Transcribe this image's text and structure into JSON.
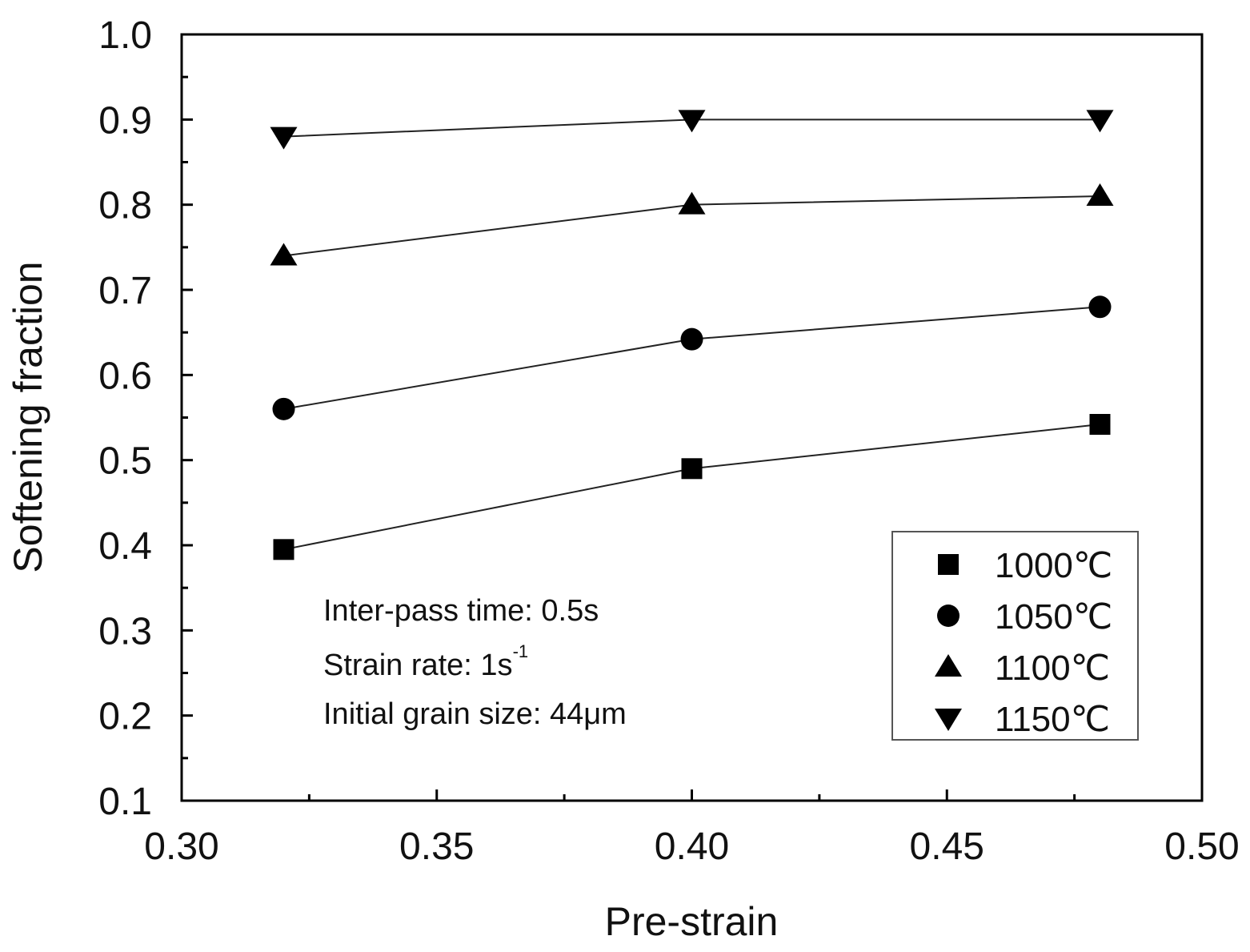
{
  "chart_data": {
    "type": "line",
    "xlabel": "Pre-strain",
    "ylabel": "Softening  fraction",
    "xlim": [
      0.3,
      0.5
    ],
    "ylim": [
      0.1,
      1.0
    ],
    "x_ticks": [
      "0.30",
      "0.35",
      "0.40",
      "0.45",
      "0.50"
    ],
    "y_ticks": [
      "0.1",
      "0.2",
      "0.3",
      "0.4",
      "0.5",
      "0.6",
      "0.7",
      "0.8",
      "0.9",
      "1.0"
    ],
    "x": [
      0.32,
      0.4,
      0.48
    ],
    "series": [
      {
        "name": "1000℃",
        "marker": "square",
        "values": [
          0.395,
          0.49,
          0.542
        ]
      },
      {
        "name": "1050℃",
        "marker": "circle",
        "values": [
          0.56,
          0.642,
          0.68
        ]
      },
      {
        "name": "1100℃",
        "marker": "triangle-up",
        "values": [
          0.74,
          0.8,
          0.81
        ]
      },
      {
        "name": "1150℃",
        "marker": "triangle-down",
        "values": [
          0.88,
          0.9,
          0.9
        ]
      }
    ],
    "annotations": [
      "Inter-pass time: 0.5s",
      "Strain rate: 1s",
      "Initial grain size: 44μm"
    ],
    "annotation_superscript": "-1",
    "legend_position": "bottom-right",
    "grid": false,
    "line_color": "#222222",
    "marker_color": "#000000"
  }
}
